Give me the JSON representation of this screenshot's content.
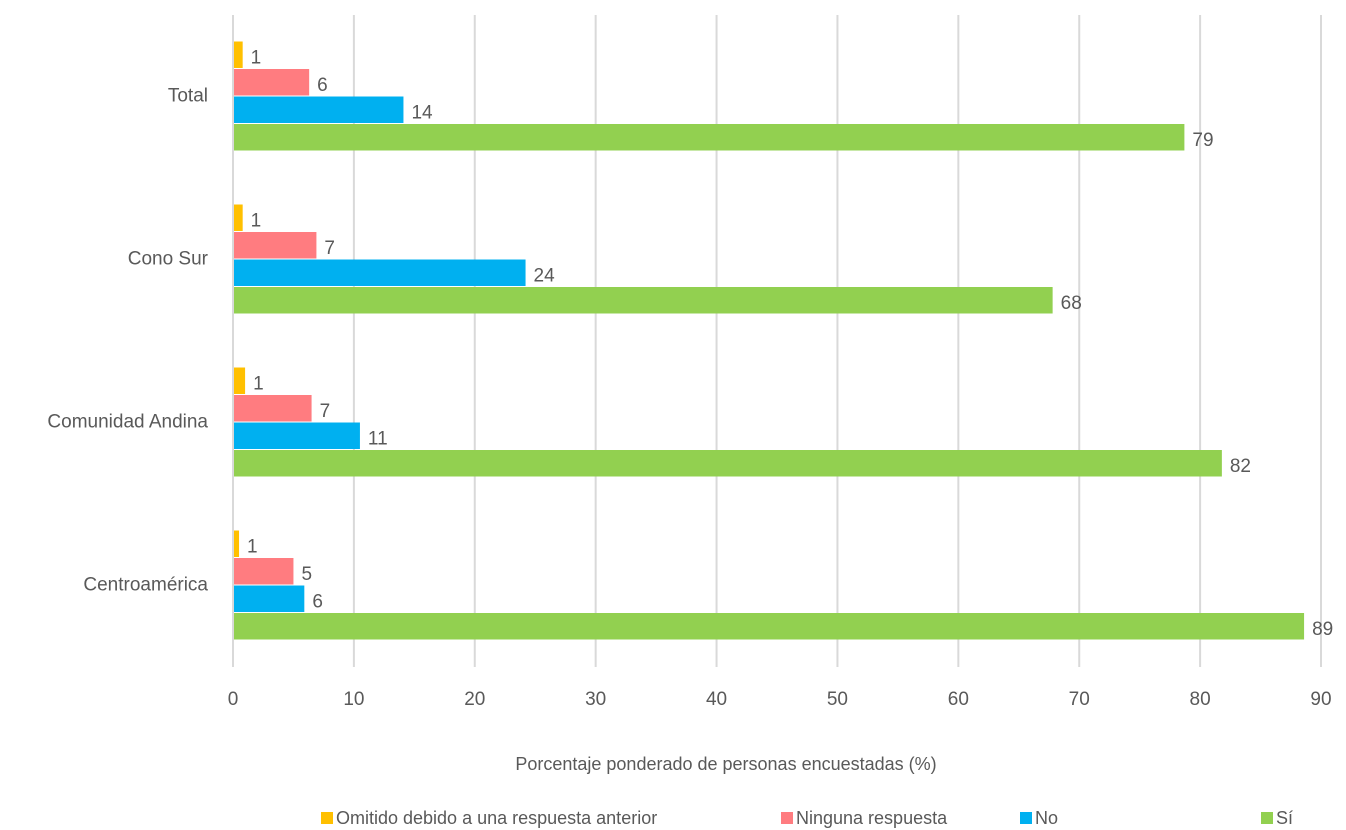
{
  "chart_data": {
    "type": "bar",
    "x_label": "Porcentaje ponderado de personas encuestadas (%)",
    "categories": [
      "Total",
      "Cono Sur",
      "Comunidad Andina",
      "Centroamérica"
    ],
    "series": [
      {
        "name": "Omitido debido a una respuesta anterior",
        "color": "#ffc000",
        "values": [
          0.8,
          0.8,
          1.0,
          0.5
        ],
        "value_labels": [
          "1",
          "1",
          "1",
          "1"
        ]
      },
      {
        "name": "Ninguna respuesta",
        "color": "#ff7c80",
        "values": [
          6.3,
          6.9,
          6.5,
          5.0
        ],
        "value_labels": [
          "6",
          "7",
          "7",
          "5"
        ]
      },
      {
        "name": "No",
        "color": "#00b0f0",
        "values": [
          14.1,
          24.2,
          10.5,
          5.9
        ],
        "value_labels": [
          "14",
          "24",
          "11",
          "6"
        ]
      },
      {
        "name": "Sí",
        "color": "#92d050",
        "values": [
          78.7,
          67.8,
          81.8,
          88.6
        ],
        "value_labels": [
          "79",
          "68",
          "82",
          "89"
        ]
      }
    ],
    "xlim": [
      0,
      90
    ],
    "xticks": [
      0,
      10,
      20,
      30,
      40,
      50,
      60,
      70,
      80,
      90
    ],
    "grid": true,
    "legend": "bottom"
  }
}
